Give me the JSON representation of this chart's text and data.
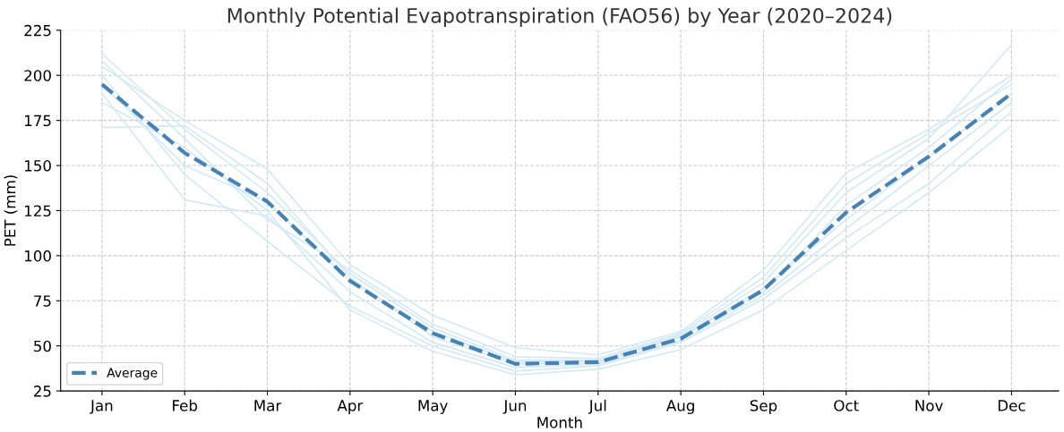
{
  "chart_data": {
    "type": "line",
    "title": "Monthly Potential Evapotranspiration (FAO56) by Year (2020–2024)",
    "xlabel": "Month",
    "ylabel": "PET (mm)",
    "categories": [
      "Jan",
      "Feb",
      "Mar",
      "Apr",
      "May",
      "Jun",
      "Jul",
      "Aug",
      "Sep",
      "Oct",
      "Nov",
      "Dec"
    ],
    "series": [
      {
        "color": "#d3eaf4",
        "values": [
          212,
          170,
          135,
          90,
          60,
          42,
          42,
          56,
          85,
          135,
          165,
          217
        ]
      },
      {
        "color": "#d3eaf4",
        "values": [
          205,
          175,
          148,
          95,
          67,
          49,
          45,
          58,
          92,
          146,
          170,
          200
        ]
      },
      {
        "color": "#d3eaf4",
        "values": [
          171,
          172,
          140,
          88,
          55,
          40,
          41,
          55,
          80,
          128,
          160,
          198
        ]
      },
      {
        "color": "#d3eaf4",
        "values": [
          190,
          131,
          122,
          80,
          52,
          38,
          40,
          53,
          78,
          115,
          150,
          185
        ]
      },
      {
        "color": "#d3eaf4",
        "values": [
          200,
          145,
          108,
          72,
          50,
          36,
          39,
          52,
          76,
          110,
          140,
          180
        ]
      },
      {
        "color": "#d3eaf4",
        "values": [
          185,
          160,
          125,
          70,
          47,
          34,
          37,
          48,
          70,
          103,
          135,
          172
        ]
      },
      {
        "color": "#d3eaf4",
        "values": [
          195,
          150,
          130,
          86,
          58,
          41,
          42,
          55,
          82,
          120,
          155,
          190
        ]
      },
      {
        "color": "#d3eaf4",
        "values": [
          208,
          165,
          120,
          92,
          62,
          44,
          43,
          57,
          88,
          140,
          168,
          195
        ]
      },
      {
        "name": "Average",
        "color": "#4682b4",
        "line_style": "dashed",
        "values": [
          195,
          157,
          130,
          86,
          57,
          40,
          41,
          54,
          81,
          124,
          155,
          190
        ]
      }
    ],
    "ylim": [
      25,
      225
    ],
    "yticks": [
      25,
      50,
      75,
      100,
      125,
      150,
      175,
      200,
      225
    ],
    "grid": true,
    "legend": "bottom left"
  }
}
